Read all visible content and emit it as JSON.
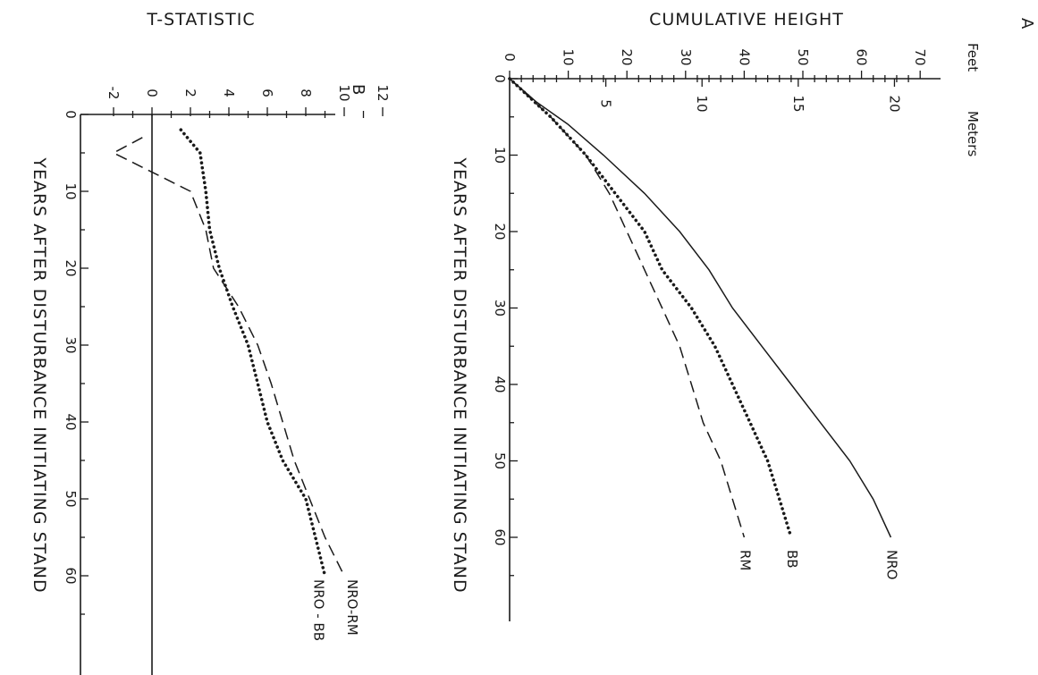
{
  "chart_data": [
    {
      "panel": "A",
      "type": "line",
      "ylabel": "CUMULATIVE HEIGHT",
      "xlabel": "YEARS AFTER DISTURBANCE INITIATING STAND",
      "y_units": [
        "Feet",
        "Meters"
      ],
      "xlim": [
        0,
        70
      ],
      "ylim": [
        0,
        72
      ],
      "x_ticks": [
        0,
        10,
        20,
        30,
        40,
        50,
        60
      ],
      "y_feet_ticks": [
        0,
        10,
        20,
        30,
        40,
        50,
        60,
        70
      ],
      "y_meter_ticks": [
        5,
        10,
        15,
        20
      ],
      "series": [
        {
          "name": "NRO",
          "style": "solid",
          "x": [
            0,
            3,
            6,
            10,
            15,
            20,
            25,
            30,
            35,
            40,
            45,
            50,
            55,
            60
          ],
          "y": [
            0,
            4.5,
            10,
            16,
            23,
            29,
            34,
            38,
            43,
            48,
            53,
            58,
            62,
            65
          ]
        },
        {
          "name": "BB",
          "style": "dotted",
          "x": [
            0,
            5,
            10,
            15,
            20,
            25,
            30,
            35,
            40,
            45,
            50,
            55,
            60
          ],
          "y": [
            0,
            7,
            13,
            18,
            23,
            26,
            31,
            35,
            38,
            41,
            44,
            46,
            48
          ]
        },
        {
          "name": "RM",
          "style": "dashed",
          "x": [
            0,
            5,
            10,
            15,
            20,
            25,
            30,
            35,
            40,
            45,
            50,
            55,
            60
          ],
          "y": [
            0,
            7,
            13,
            17,
            20,
            23,
            26,
            29,
            31,
            33,
            36,
            38,
            40
          ]
        }
      ]
    },
    {
      "panel": "B",
      "type": "line",
      "ylabel": "T-STATISTIC",
      "xlabel": "YEARS AFTER DISTURBANCE INITIATING STAND",
      "xlim": [
        0,
        70
      ],
      "ylim": [
        -3,
        12.5
      ],
      "x_ticks": [
        0,
        10,
        20,
        30,
        40,
        50,
        60
      ],
      "y_ticks": [
        -2,
        0,
        2,
        4,
        6,
        8,
        10,
        12
      ],
      "series": [
        {
          "name": "NRO-RM",
          "style": "dashed",
          "x": [
            3,
            5,
            10,
            15,
            20,
            25,
            30,
            35,
            40,
            45,
            50,
            55,
            60
          ],
          "y": [
            -0.5,
            -2,
            2,
            2.8,
            3.2,
            4.5,
            5.5,
            6.2,
            6.8,
            7.4,
            8.2,
            9,
            10
          ]
        },
        {
          "name": "NRO - BB",
          "style": "dotted",
          "x": [
            2,
            5,
            10,
            15,
            20,
            25,
            30,
            35,
            40,
            45,
            50,
            55,
            60
          ],
          "y": [
            1.5,
            2.5,
            2.8,
            3,
            3.5,
            4.2,
            5,
            5.5,
            6,
            6.8,
            8,
            8.5,
            9
          ]
        }
      ]
    }
  ]
}
